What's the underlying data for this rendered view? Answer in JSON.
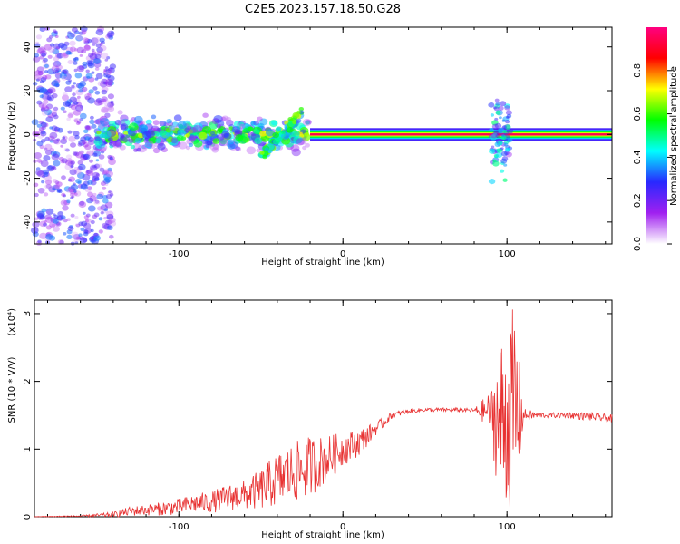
{
  "title": "C2E5.2023.157.18.50.G28",
  "chart_data": [
    {
      "type": "heatmap",
      "name": "spectrogram",
      "xlabel": "Height of straight line (km)",
      "ylabel": "Frequency (Hz)",
      "xlim": [
        -188,
        164
      ],
      "ylim": [
        -50,
        49
      ],
      "xticks": [
        -100,
        0,
        100
      ],
      "xtick_labels": [
        "-100",
        "0",
        "100"
      ],
      "yticks": [
        -40,
        -20,
        0,
        20,
        40
      ],
      "ytick_labels": [
        "-40",
        "-20",
        "0",
        "20",
        "40"
      ],
      "colorbar": {
        "label": "Normalized spectral amplitude",
        "range": [
          0,
          1
        ],
        "ticks": [
          0.0,
          0.2,
          0.4,
          0.6,
          0.8
        ],
        "tick_labels": [
          "0.0",
          "0.2",
          "0.4",
          "0.6",
          "0.8"
        ],
        "colors": [
          "#ffffff",
          "#a020f0",
          "#2828ff",
          "#00ffff",
          "#00ff00",
          "#ffff00",
          "#ff0000",
          "#ff0080"
        ]
      },
      "features": [
        {
          "x_from": -188,
          "x_to": -140,
          "freq_center": 0,
          "freq_spread": 50,
          "amplitude": 0.25,
          "kind": "noise"
        },
        {
          "x_from": -150,
          "x_to": -20,
          "freq_center": 0,
          "freq_spread": 6,
          "amplitude": 0.5,
          "kind": "scattered"
        },
        {
          "x_from": -50,
          "x_to": -25,
          "freq_from": -10,
          "freq_to": 10,
          "amplitude": 0.5,
          "kind": "streak"
        },
        {
          "x_from": -20,
          "x_to": 164,
          "freq_center": 0,
          "freq_spread": 2,
          "amplitude": 0.9,
          "kind": "tone"
        },
        {
          "x_from": 90,
          "x_to": 103,
          "freq_center": 0,
          "freq_spread": 18,
          "amplitude": 0.3,
          "kind": "spike"
        }
      ]
    },
    {
      "type": "line",
      "name": "snr",
      "xlabel": "Height of straight line (km)",
      "ylabel": "SNR (10 * V/V)",
      "y_scale_label": "(x10⁴)",
      "xlim": [
        -188,
        164
      ],
      "ylim": [
        0,
        3.2
      ],
      "xticks": [
        -100,
        0,
        100
      ],
      "xtick_labels": [
        "-100",
        "0",
        "100"
      ],
      "yticks": [
        0,
        1,
        2,
        3
      ],
      "ytick_labels": [
        "0",
        "1",
        "2",
        "3"
      ],
      "color": "#e83232",
      "series": [
        {
          "name": "SNR",
          "x": [
            -188,
            -160,
            -140,
            -130,
            -120,
            -110,
            -100,
            -90,
            -80,
            -70,
            -60,
            -50,
            -40,
            -30,
            -20,
            -10,
            0,
            10,
            20,
            30,
            40,
            50,
            60,
            70,
            80,
            90,
            95,
            100,
            105,
            110,
            120,
            130,
            140,
            150,
            164
          ],
          "y": [
            0.0,
            0.01,
            0.03,
            0.08,
            0.1,
            0.12,
            0.15,
            0.2,
            0.22,
            0.28,
            0.32,
            0.4,
            0.55,
            0.65,
            0.75,
            0.85,
            1.0,
            1.1,
            1.3,
            1.5,
            1.56,
            1.58,
            1.58,
            1.58,
            1.57,
            1.56,
            1.4,
            1.5,
            1.55,
            1.5,
            1.5,
            1.5,
            1.5,
            1.48,
            1.45
          ],
          "noise": [
            0.005,
            0.01,
            0.04,
            0.07,
            0.08,
            0.1,
            0.12,
            0.14,
            0.16,
            0.2,
            0.22,
            0.3,
            0.4,
            0.45,
            0.45,
            0.35,
            0.25,
            0.2,
            0.1,
            0.05,
            0.03,
            0.03,
            0.03,
            0.03,
            0.03,
            0.3,
            1.2,
            1.4,
            1.6,
            0.1,
            0.04,
            0.04,
            0.05,
            0.06,
            0.06
          ]
        }
      ]
    }
  ]
}
